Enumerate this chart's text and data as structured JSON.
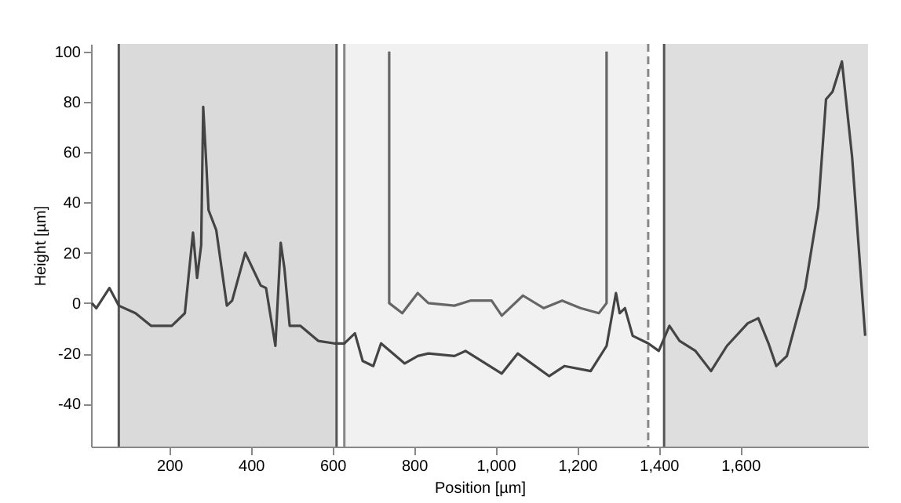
{
  "chart_data": {
    "type": "line",
    "xlabel": "Position [µm]",
    "ylabel": "Height [µm]",
    "xlim": [
      8,
      1913
    ],
    "ylim": [
      -57,
      103
    ],
    "xticks": [
      200,
      400,
      600,
      800,
      {
        "value": 1000,
        "label": "1,000"
      },
      {
        "value": 1200,
        "label": "1,200"
      },
      {
        "value": 1400,
        "label": "1,400"
      },
      {
        "value": 1600,
        "label": "1,600"
      }
    ],
    "yticks": [
      -40,
      -20,
      0,
      20,
      40,
      60,
      80,
      100
    ],
    "grid": false,
    "legend": false,
    "line_style": "solid",
    "marker": "none",
    "bands": [
      {
        "axis": "x",
        "from": 76,
        "to": 610,
        "color": "#dadada"
      },
      {
        "axis": "x",
        "from": 629,
        "to": 1374,
        "color": "#f1f1f1"
      },
      {
        "axis": "x",
        "from": 1413,
        "to": 1913,
        "color": "#dedede"
      }
    ],
    "ref_lines": [
      {
        "axis": "x",
        "value": 76,
        "color": "#555555",
        "line_style": "solid"
      },
      {
        "axis": "x",
        "value": 610,
        "color": "#555555",
        "line_style": "solid"
      },
      {
        "axis": "x",
        "value": 629,
        "color": "#888888",
        "line_style": "solid"
      },
      {
        "axis": "x",
        "value": 1374,
        "color": "#888888",
        "line_style": "dashed"
      },
      {
        "axis": "x",
        "value": 1413,
        "color": "#555555",
        "line_style": "solid"
      }
    ],
    "series": [
      {
        "color": "#444444",
        "x": [
          10,
          21,
          53,
          76,
          117,
          155,
          206,
          238,
          258,
          268,
          278,
          283,
          291,
          296,
          315,
          341,
          354,
          386,
          424,
          437,
          460,
          473,
          482,
          495,
          521,
          565,
          604,
          629,
          655,
          674,
          700,
          719,
          777,
          809,
          835,
          899,
          926,
          1015,
          1054,
          1131,
          1169,
          1233,
          1272,
          1295,
          1304,
          1317,
          1336,
          1374,
          1400,
          1426,
          1451,
          1490,
          1528,
          1567,
          1618,
          1644,
          1669,
          1688,
          1714,
          1759,
          1791,
          1810,
          1826,
          1849,
          1874,
          1906
        ],
        "values": [
          0,
          -2,
          6,
          -1,
          -4,
          -9,
          -9,
          -4,
          28,
          10,
          23,
          78,
          54,
          37,
          29,
          -1,
          1,
          20,
          7,
          6,
          -17,
          24,
          14,
          -9,
          -9,
          -15,
          -16,
          -16,
          -12,
          -23,
          -25,
          -16,
          -24,
          -21,
          -20,
          -21,
          -19,
          -28,
          -20,
          -29,
          -25,
          -27,
          -17,
          4,
          -4,
          -2,
          -13,
          -16,
          -19,
          -9,
          -15,
          -19,
          -27,
          -17,
          -8,
          -6,
          -16,
          -25,
          -21,
          6,
          38,
          81,
          84,
          96,
          58,
          -13
        ]
      },
      {
        "color": "#666666",
        "x": [
          739,
          739,
          771,
          809,
          835,
          899,
          938,
          990,
          1015,
          1067,
          1118,
          1163,
          1208,
          1253,
          1272,
          1272
        ],
        "values": [
          100,
          0,
          -4,
          4,
          0,
          -1,
          1,
          1,
          -5,
          3,
          -2,
          1,
          -2,
          -4,
          0,
          100
        ]
      }
    ]
  }
}
